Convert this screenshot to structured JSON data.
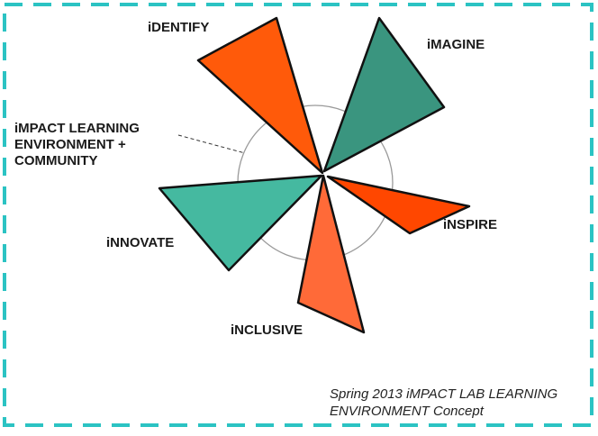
{
  "center_label": {
    "line1": "iMPACT LEARNING",
    "line2": "ENVIRONMENT +",
    "line3": "COMMUNITY"
  },
  "petals": [
    {
      "id": "identify",
      "label": "iDENTIFY",
      "color": "#ff5a0a"
    },
    {
      "id": "imagine",
      "label": "iMAGINE",
      "color": "#3a957f"
    },
    {
      "id": "inspire",
      "label": "iNSPIRE",
      "color": "#ff4700"
    },
    {
      "id": "inclusive",
      "label": "iNCLUSIVE",
      "color": "#ff6a38"
    },
    {
      "id": "innovate",
      "label": "iNNOVATE",
      "color": "#45b9a0"
    }
  ],
  "caption": {
    "line1": "Spring 2013 iMPACT LAB LEARNING",
    "line2": "ENVIRONMENT Concept"
  },
  "colors": {
    "frame": "#2bc3c3",
    "outline": "#111111",
    "circle": "#9a9a9a"
  }
}
